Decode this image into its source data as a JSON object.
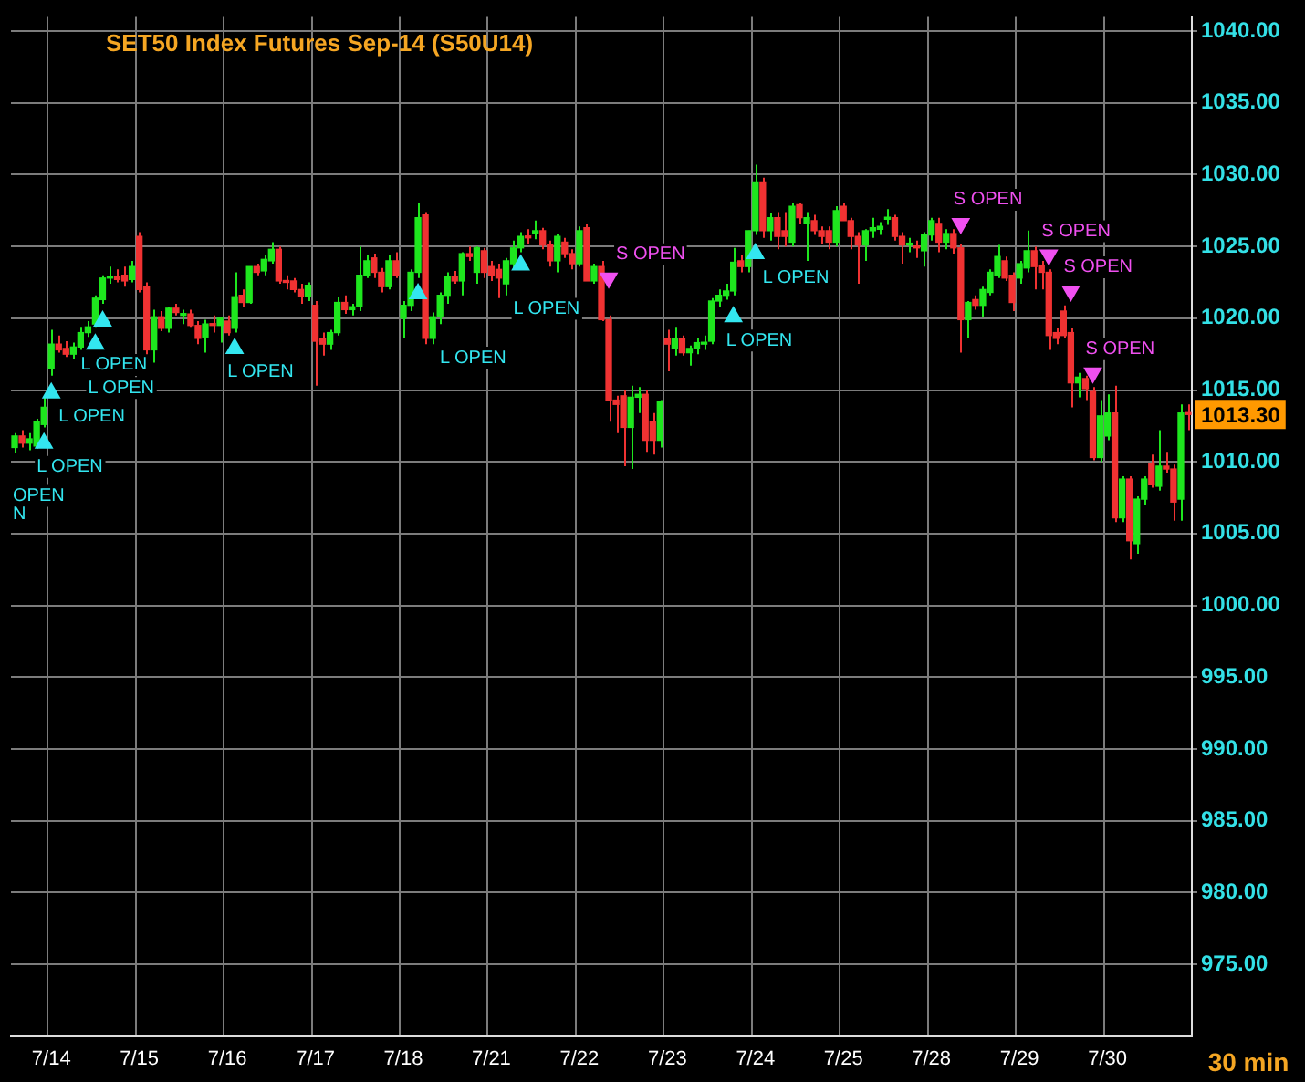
{
  "chart_data": {
    "type": "candlestick",
    "title": "SET50 Index Futures Sep-14 (S50U14)",
    "xlabel": "30 min",
    "categories": [
      null,
      null,
      null,
      null,
      null,
      "7/14",
      null,
      null,
      null,
      null,
      null,
      null,
      null,
      null,
      null,
      null,
      null,
      "7/15",
      null,
      null,
      null,
      null,
      null,
      null,
      null,
      null,
      null,
      null,
      null,
      "7/16",
      null,
      null,
      null,
      null,
      null,
      null,
      null,
      null,
      null,
      null,
      null,
      "7/17",
      null,
      null,
      null,
      null,
      null,
      null,
      null,
      null,
      null,
      null,
      null,
      "7/18",
      null,
      null,
      null,
      null,
      null,
      null,
      null,
      null,
      null,
      null,
      null,
      "7/21",
      null,
      null,
      null,
      null,
      null,
      null,
      null,
      null,
      null,
      null,
      null,
      "7/22",
      null,
      null,
      null,
      null,
      null,
      null,
      null,
      null,
      null,
      null,
      null,
      "7/23",
      null,
      null,
      null,
      null,
      null,
      null,
      null,
      null,
      null,
      null,
      null,
      "7/24",
      null,
      null,
      null,
      null,
      null,
      null,
      null,
      null,
      null,
      null,
      null,
      "7/25",
      null,
      null,
      null,
      null,
      null,
      null,
      null,
      null,
      null,
      null,
      null,
      "7/28",
      null,
      null,
      null,
      null,
      null,
      null,
      null,
      null,
      null,
      null,
      null,
      "7/29",
      null,
      null,
      null,
      null,
      null,
      null,
      null,
      null,
      null,
      null,
      null,
      "7/30",
      null,
      null,
      null,
      null,
      null,
      null,
      null,
      null,
      null,
      null,
      null
    ],
    "ohlc": [
      [
        1011.0,
        1012.0,
        1010.6,
        1011.8
      ],
      [
        1011.8,
        1012.2,
        1011.0,
        1011.3
      ],
      [
        1011.3,
        1012.0,
        1010.8,
        1011.6
      ],
      [
        1011.1,
        1013.0,
        1010.9,
        1012.8
      ],
      [
        1012.6,
        1014.5,
        1012.4,
        1013.8
      ],
      [
        1016.5,
        1019.2,
        1016.0,
        1018.2
      ],
      [
        1018.2,
        1018.8,
        1017.6,
        1017.8
      ],
      [
        1017.9,
        1018.4,
        1017.3,
        1017.5
      ],
      [
        1017.5,
        1018.3,
        1017.2,
        1018.0
      ],
      [
        1018.0,
        1019.4,
        1017.8,
        1019.0
      ],
      [
        1019.0,
        1019.8,
        1018.7,
        1019.4
      ],
      [
        1019.6,
        1021.6,
        1019.4,
        1021.4
      ],
      [
        1021.3,
        1023.0,
        1021.0,
        1022.8
      ],
      [
        1022.8,
        1023.6,
        1022.4,
        1022.9
      ],
      [
        1022.9,
        1023.4,
        1022.5,
        1022.7
      ],
      [
        1023.0,
        1023.6,
        1022.2,
        1022.6
      ],
      [
        1022.7,
        1024.0,
        1022.5,
        1023.6
      ],
      [
        1025.7,
        1026.0,
        1021.8,
        1022.0
      ],
      [
        1022.2,
        1022.5,
        1017.5,
        1017.8
      ],
      [
        1017.8,
        1020.6,
        1016.9,
        1020.1
      ],
      [
        1020.1,
        1020.5,
        1019.1,
        1019.3
      ],
      [
        1019.3,
        1020.8,
        1019.0,
        1020.7
      ],
      [
        1020.7,
        1021.0,
        1020.2,
        1020.4
      ],
      [
        1020.2,
        1020.6,
        1019.6,
        1020.3
      ],
      [
        1020.3,
        1020.6,
        1019.4,
        1019.5
      ],
      [
        1019.5,
        1019.8,
        1018.2,
        1018.6
      ],
      [
        1018.7,
        1019.9,
        1017.6,
        1019.6
      ],
      [
        1019.6,
        1020.2,
        1019.0,
        1019.5
      ],
      [
        1019.5,
        1020.1,
        1018.3,
        1020.0
      ],
      [
        1019.8,
        1020.2,
        1018.8,
        1019.0
      ],
      [
        1019.3,
        1023.2,
        1019.0,
        1021.5
      ],
      [
        1021.6,
        1022.0,
        1020.8,
        1021.1
      ],
      [
        1021.1,
        1023.6,
        1021.0,
        1023.6
      ],
      [
        1023.6,
        1023.8,
        1023.0,
        1023.2
      ],
      [
        1023.3,
        1024.4,
        1023.0,
        1024.1
      ],
      [
        1024.0,
        1025.3,
        1023.8,
        1024.8
      ],
      [
        1024.8,
        1025.0,
        1022.4,
        1022.6
      ],
      [
        1022.6,
        1023.0,
        1022.0,
        1022.5
      ],
      [
        1022.6,
        1022.8,
        1021.8,
        1022.0
      ],
      [
        1022.0,
        1022.4,
        1021.0,
        1021.5
      ],
      [
        1021.5,
        1022.5,
        1021.2,
        1022.3
      ],
      [
        1020.9,
        1021.2,
        1015.3,
        1018.4
      ],
      [
        1018.6,
        1019.0,
        1017.4,
        1018.2
      ],
      [
        1018.2,
        1019.2,
        1017.8,
        1019.0
      ],
      [
        1019.0,
        1021.5,
        1018.8,
        1021.1
      ],
      [
        1021.1,
        1021.6,
        1020.3,
        1020.6
      ],
      [
        1020.6,
        1021.0,
        1020.2,
        1020.8
      ],
      [
        1020.8,
        1025.0,
        1020.5,
        1023.0
      ],
      [
        1023.0,
        1024.4,
        1022.8,
        1024.0
      ],
      [
        1024.2,
        1024.5,
        1022.8,
        1023.2
      ],
      [
        1023.2,
        1023.5,
        1021.8,
        1022.2
      ],
      [
        1022.2,
        1024.4,
        1022.0,
        1024.0
      ],
      [
        1024.0,
        1024.6,
        1022.8,
        1023.0
      ],
      [
        1020.0,
        1021.2,
        1018.6,
        1020.9
      ],
      [
        1020.9,
        1023.4,
        1020.5,
        1023.2
      ],
      [
        1023.2,
        1028.0,
        1022.8,
        1027.0
      ],
      [
        1027.2,
        1027.4,
        1018.2,
        1018.6
      ],
      [
        1018.6,
        1020.4,
        1018.2,
        1020.1
      ],
      [
        1020.1,
        1021.8,
        1019.6,
        1021.6
      ],
      [
        1021.6,
        1023.2,
        1021.0,
        1022.9
      ],
      [
        1022.9,
        1023.3,
        1022.4,
        1022.6
      ],
      [
        1022.6,
        1024.6,
        1021.6,
        1024.5
      ],
      [
        1024.5,
        1025.0,
        1024.0,
        1024.3
      ],
      [
        1023.2,
        1025.0,
        1022.4,
        1024.9
      ],
      [
        1024.7,
        1024.9,
        1022.8,
        1023.2
      ],
      [
        1023.6,
        1024.0,
        1022.6,
        1023.0
      ],
      [
        1023.4,
        1023.8,
        1021.4,
        1022.8
      ],
      [
        1022.4,
        1024.2,
        1021.6,
        1024.0
      ],
      [
        1023.8,
        1025.4,
        1023.4,
        1024.9
      ],
      [
        1024.9,
        1026.0,
        1024.6,
        1025.7
      ],
      [
        1025.7,
        1026.2,
        1025.2,
        1025.6
      ],
      [
        1025.9,
        1026.8,
        1025.5,
        1026.1
      ],
      [
        1026.1,
        1026.3,
        1024.8,
        1025.1
      ],
      [
        1025.1,
        1025.4,
        1023.6,
        1024.0
      ],
      [
        1024.0,
        1025.9,
        1023.2,
        1025.7
      ],
      [
        1025.3,
        1025.6,
        1024.2,
        1024.5
      ],
      [
        1024.5,
        1024.8,
        1023.4,
        1023.8
      ],
      [
        1023.8,
        1026.4,
        1023.6,
        1026.1
      ],
      [
        1026.3,
        1026.6,
        1022.6,
        1022.6
      ],
      [
        1022.6,
        1023.8,
        1022.4,
        1023.6
      ],
      [
        1023.6,
        1024.0,
        1019.8,
        1019.9
      ],
      [
        1019.9,
        1020.2,
        1012.8,
        1014.3
      ],
      [
        1014.3,
        1014.6,
        1012.0,
        1014.0
      ],
      [
        1014.6,
        1015.0,
        1009.7,
        1012.4
      ],
      [
        1012.4,
        1015.3,
        1009.5,
        1014.5
      ],
      [
        1014.5,
        1015.2,
        1013.4,
        1014.7
      ],
      [
        1014.7,
        1015.0,
        1010.7,
        1011.5
      ],
      [
        1012.8,
        1013.4,
        1010.5,
        1011.5
      ],
      [
        1011.5,
        1014.3,
        1011.0,
        1014.2
      ],
      [
        1018.6,
        1019.2,
        1016.3,
        1018.2
      ],
      [
        1017.9,
        1019.4,
        1017.4,
        1018.6
      ],
      [
        1018.6,
        1018.8,
        1017.4,
        1017.6
      ],
      [
        1017.6,
        1018.1,
        1016.7,
        1017.9
      ],
      [
        1017.9,
        1018.6,
        1017.5,
        1018.3
      ],
      [
        1018.2,
        1018.8,
        1017.8,
        1018.3
      ],
      [
        1018.4,
        1021.4,
        1018.2,
        1021.2
      ],
      [
        1021.2,
        1022.0,
        1020.8,
        1021.6
      ],
      [
        1021.6,
        1022.4,
        1021.3,
        1021.9
      ],
      [
        1021.9,
        1024.9,
        1021.6,
        1023.9
      ],
      [
        1024.0,
        1024.4,
        1023.2,
        1023.6
      ],
      [
        1023.6,
        1026.1,
        1023.2,
        1026.1
      ],
      [
        1026.1,
        1030.7,
        1025.8,
        1029.5
      ],
      [
        1029.5,
        1029.8,
        1025.6,
        1026.1
      ],
      [
        1026.1,
        1027.3,
        1025.4,
        1027.0
      ],
      [
        1027.0,
        1027.4,
        1024.8,
        1025.7
      ],
      [
        1026.1,
        1027.4,
        1025.0,
        1025.7
      ],
      [
        1025.3,
        1028.0,
        1025.0,
        1027.8
      ],
      [
        1027.9,
        1028.0,
        1026.6,
        1027.0
      ],
      [
        1026.6,
        1027.4,
        1024.0,
        1027.0
      ],
      [
        1026.8,
        1027.2,
        1025.8,
        1026.1
      ],
      [
        1026.1,
        1026.4,
        1025.2,
        1025.7
      ],
      [
        1026.1,
        1026.4,
        1024.8,
        1025.3
      ],
      [
        1025.3,
        1027.8,
        1025.0,
        1027.5
      ],
      [
        1027.8,
        1028.0,
        1026.8,
        1026.8
      ],
      [
        1026.8,
        1027.0,
        1024.8,
        1025.7
      ],
      [
        1025.7,
        1026.0,
        1022.4,
        1025.1
      ],
      [
        1025.1,
        1026.2,
        1024.0,
        1026.1
      ],
      [
        1026.1,
        1027.0,
        1025.6,
        1026.3
      ],
      [
        1026.2,
        1026.7,
        1025.8,
        1026.4
      ],
      [
        1026.9,
        1027.6,
        1026.5,
        1027.0
      ],
      [
        1027.0,
        1027.2,
        1025.4,
        1025.7
      ],
      [
        1025.7,
        1026.0,
        1023.8,
        1025.1
      ],
      [
        1025.1,
        1025.6,
        1024.6,
        1025.2
      ],
      [
        1025.0,
        1025.4,
        1024.2,
        1024.9
      ],
      [
        1024.7,
        1026.0,
        1023.6,
        1025.8
      ],
      [
        1025.8,
        1027.0,
        1025.4,
        1026.8
      ],
      [
        1026.6,
        1027.0,
        1024.6,
        1025.3
      ],
      [
        1025.3,
        1026.2,
        1024.8,
        1025.9
      ],
      [
        1025.9,
        1026.2,
        1024.5,
        1024.9
      ],
      [
        1024.9,
        1025.2,
        1017.6,
        1019.9
      ],
      [
        1019.9,
        1021.2,
        1018.6,
        1021.1
      ],
      [
        1021.3,
        1021.6,
        1020.6,
        1020.9
      ],
      [
        1020.9,
        1022.2,
        1020.1,
        1022.0
      ],
      [
        1021.8,
        1023.4,
        1021.6,
        1023.2
      ],
      [
        1023.0,
        1025.1,
        1022.8,
        1024.3
      ],
      [
        1024.0,
        1024.3,
        1022.6,
        1022.8
      ],
      [
        1023.0,
        1023.2,
        1020.5,
        1021.1
      ],
      [
        1022.8,
        1024.0,
        1022.4,
        1023.8
      ],
      [
        1023.5,
        1026.1,
        1023.2,
        1024.7
      ],
      [
        1024.7,
        1025.0,
        1022.0,
        1023.6
      ],
      [
        1023.7,
        1024.0,
        1022.0,
        1023.2
      ],
      [
        1023.2,
        1023.4,
        1017.8,
        1018.8
      ],
      [
        1019.0,
        1019.3,
        1018.2,
        1018.6
      ],
      [
        1020.5,
        1020.9,
        1018.6,
        1018.8
      ],
      [
        1019.0,
        1019.3,
        1013.8,
        1015.5
      ],
      [
        1015.5,
        1016.2,
        1014.5,
        1015.9
      ],
      [
        1015.8,
        1016.0,
        1014.3,
        1015.1
      ],
      [
        1014.9,
        1015.2,
        1010.1,
        1010.3
      ],
      [
        1010.3,
        1014.3,
        1010.0,
        1013.2
      ],
      [
        1011.8,
        1014.7,
        1011.5,
        1013.4
      ],
      [
        1013.4,
        1015.3,
        1005.8,
        1006.1
      ],
      [
        1006.1,
        1009.0,
        1005.8,
        1008.8
      ],
      [
        1008.8,
        1009.0,
        1003.2,
        1004.5
      ],
      [
        1004.3,
        1007.6,
        1003.6,
        1007.4
      ],
      [
        1007.4,
        1009.0,
        1007.0,
        1008.8
      ],
      [
        1009.9,
        1010.5,
        1008.2,
        1008.4
      ],
      [
        1008.3,
        1012.2,
        1008.0,
        1009.7
      ],
      [
        1009.7,
        1010.7,
        1009.2,
        1009.5
      ],
      [
        1009.5,
        1009.8,
        1005.9,
        1007.2
      ],
      [
        1007.4,
        1014.0,
        1005.9,
        1013.4
      ],
      [
        1013.4,
        1014.0,
        1012.2,
        1013.3
      ]
    ],
    "series": [
      {
        "type": "scatter",
        "color": "#33e6f0",
        "marker": "triangle",
        "values": [
          null,
          null,
          null,
          null,
          1011.3,
          1014.8,
          null,
          null,
          null,
          null,
          null,
          1018.2,
          1019.8,
          null,
          null,
          null,
          null,
          null,
          null,
          null,
          null,
          null,
          null,
          null,
          null,
          null,
          null,
          null,
          null,
          null,
          1017.9,
          null,
          null,
          null,
          null,
          null,
          null,
          null,
          null,
          null,
          null,
          null,
          null,
          null,
          null,
          null,
          null,
          null,
          null,
          null,
          null,
          null,
          null,
          null,
          null,
          1021.7,
          null,
          null,
          null,
          null,
          null,
          null,
          null,
          null,
          null,
          null,
          null,
          null,
          null,
          1023.7,
          null,
          null,
          null,
          null,
          null,
          null,
          null,
          null,
          null,
          null,
          null,
          null,
          null,
          null,
          null,
          null,
          null,
          null,
          null,
          null,
          null,
          null,
          null,
          null,
          null,
          null,
          null,
          null,
          1020.1,
          null,
          null,
          1024.5,
          null,
          null,
          null,
          null,
          null,
          null,
          null,
          null,
          null,
          null,
          null,
          null,
          null,
          null,
          null,
          null,
          null,
          null,
          null,
          null,
          null,
          null,
          null,
          null,
          null,
          null,
          null,
          null,
          null,
          null,
          null,
          null,
          null,
          null,
          null,
          null,
          null,
          null,
          null,
          null,
          null,
          null,
          null,
          null,
          null,
          null,
          null,
          null,
          null,
          null,
          null,
          null,
          null,
          null,
          null,
          null,
          null,
          null,
          null
        ],
        "value_labels": [
          null,
          null,
          null,
          null,
          "L OPEN",
          "L OPEN",
          null,
          null,
          null,
          null,
          null,
          "L OPEN",
          "L OPEN",
          null,
          null,
          null,
          null,
          null,
          null,
          null,
          null,
          null,
          null,
          null,
          null,
          null,
          null,
          null,
          null,
          null,
          "L OPEN",
          null,
          null,
          null,
          null,
          null,
          null,
          null,
          null,
          null,
          null,
          null,
          null,
          null,
          null,
          null,
          null,
          null,
          null,
          null,
          null,
          null,
          null,
          null,
          null,
          "L OPEN",
          null,
          null,
          null,
          null,
          null,
          null,
          null,
          null,
          null,
          null,
          null,
          null,
          null,
          "L OPEN",
          null,
          null,
          null,
          null,
          null,
          null,
          null,
          null,
          null,
          null,
          null,
          null,
          null,
          null,
          null,
          null,
          null,
          null,
          null,
          null,
          null,
          null,
          null,
          null,
          null,
          null,
          null,
          null,
          "L OPEN",
          null,
          null,
          "L OPEN",
          null,
          null,
          null,
          null,
          null,
          null,
          null,
          null,
          null,
          null,
          null,
          null,
          null,
          null,
          null,
          null,
          null,
          null,
          null,
          null,
          null,
          null,
          null,
          null,
          null,
          null,
          null,
          null,
          null,
          null,
          null,
          null,
          null,
          null,
          null,
          null,
          null,
          null,
          null,
          null,
          null,
          null,
          null,
          null,
          null,
          null,
          null,
          null,
          null,
          null,
          null,
          null,
          null,
          null,
          null,
          null,
          null,
          null,
          null
        ]
      },
      {
        "type": "scatter",
        "color": "#f050f0",
        "marker": "triangle",
        "values": [
          null,
          null,
          null,
          null,
          null,
          null,
          null,
          null,
          null,
          null,
          null,
          null,
          null,
          null,
          null,
          null,
          null,
          null,
          null,
          null,
          null,
          null,
          null,
          null,
          null,
          null,
          null,
          null,
          null,
          null,
          null,
          null,
          null,
          null,
          null,
          null,
          null,
          null,
          null,
          null,
          null,
          null,
          null,
          null,
          null,
          null,
          null,
          null,
          null,
          null,
          null,
          null,
          null,
          null,
          null,
          null,
          null,
          null,
          null,
          null,
          null,
          null,
          null,
          null,
          null,
          null,
          null,
          null,
          null,
          null,
          null,
          null,
          null,
          null,
          null,
          null,
          null,
          null,
          null,
          null,
          null,
          1022.8,
          null,
          null,
          null,
          null,
          null,
          null,
          null,
          null,
          null,
          null,
          null,
          null,
          null,
          null,
          null,
          null,
          null,
          null,
          null,
          null,
          null,
          null,
          null,
          null,
          null,
          null,
          null,
          null,
          null,
          null,
          null,
          null,
          null,
          null,
          null,
          null,
          null,
          null,
          null,
          null,
          null,
          null,
          null,
          null,
          null,
          null,
          null,
          1026.6,
          null,
          null,
          null,
          null,
          null,
          null,
          null,
          null,
          null,
          null,
          null,
          1024.4,
          null,
          null,
          1021.9,
          null,
          null,
          1016.2,
          null,
          null,
          null,
          null,
          null,
          null,
          null,
          null,
          null,
          null,
          null,
          null,
          null
        ],
        "value_labels": [
          null,
          null,
          null,
          null,
          null,
          null,
          null,
          null,
          null,
          null,
          null,
          null,
          null,
          null,
          null,
          null,
          null,
          null,
          null,
          null,
          null,
          null,
          null,
          null,
          null,
          null,
          null,
          null,
          null,
          null,
          null,
          null,
          null,
          null,
          null,
          null,
          null,
          null,
          null,
          null,
          null,
          null,
          null,
          null,
          null,
          null,
          null,
          null,
          null,
          null,
          null,
          null,
          null,
          null,
          null,
          null,
          null,
          null,
          null,
          null,
          null,
          null,
          null,
          null,
          null,
          null,
          null,
          null,
          null,
          null,
          null,
          null,
          null,
          null,
          null,
          null,
          null,
          null,
          null,
          null,
          null,
          "S OPEN",
          null,
          null,
          null,
          null,
          null,
          null,
          null,
          null,
          null,
          null,
          null,
          null,
          null,
          null,
          null,
          null,
          null,
          null,
          null,
          null,
          null,
          null,
          null,
          null,
          null,
          null,
          null,
          null,
          null,
          null,
          null,
          null,
          null,
          null,
          null,
          null,
          null,
          null,
          null,
          null,
          null,
          null,
          null,
          null,
          null,
          null,
          null,
          "S OPEN",
          null,
          null,
          null,
          null,
          null,
          null,
          null,
          null,
          null,
          null,
          null,
          "S OPEN",
          null,
          null,
          "S OPEN",
          null,
          null,
          "S OPEN",
          null,
          null,
          null,
          null,
          null,
          null,
          null,
          null,
          null,
          null,
          null,
          null,
          null
        ]
      }
    ],
    "ylim": [
      970,
      1041
    ],
    "yticks": [
      {
        "value": 975,
        "label": "975.00"
      },
      {
        "value": 980,
        "label": "980.00"
      },
      {
        "value": 985,
        "label": "985.00"
      },
      {
        "value": 990,
        "label": "990.00"
      },
      {
        "value": 995,
        "label": "995.00"
      },
      {
        "value": 1000,
        "label": "1000.00"
      },
      {
        "value": 1005,
        "label": "1005.00"
      },
      {
        "value": 1010,
        "label": "1010.00"
      },
      {
        "value": 1015,
        "label": "1015.00"
      },
      {
        "value": 1020,
        "label": "1020.00"
      },
      {
        "value": 1025,
        "label": "1025.00"
      },
      {
        "value": 1030,
        "label": "1030.00"
      },
      {
        "value": 1035,
        "label": "1035.00"
      },
      {
        "value": 1040,
        "label": "1040.00"
      }
    ],
    "grid": true,
    "annotations": [
      "OPEN",
      "N",
      "1013.30"
    ]
  }
}
